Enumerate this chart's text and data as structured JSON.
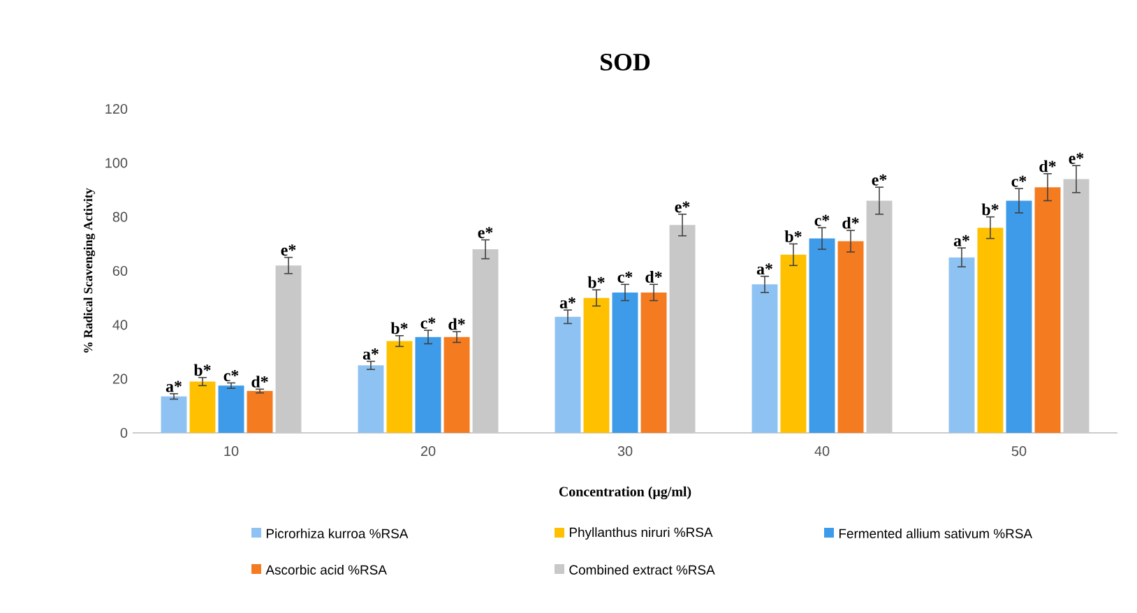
{
  "chart_data": {
    "type": "bar",
    "title": "SOD",
    "xlabel": "Concentration (µg/ml)",
    "ylabel": "% Radical Scavenging Activity",
    "categories": [
      "10",
      "20",
      "30",
      "40",
      "50"
    ],
    "series": [
      {
        "name": "Picrorhiza kurroa %RSA",
        "color": "#8ec2f2",
        "values": [
          13.5,
          25,
          43,
          55,
          65
        ],
        "errors": [
          1,
          1.5,
          2.5,
          3,
          3.5
        ],
        "value_labels": [
          "a*",
          "a*",
          "a*",
          "a*",
          "a*"
        ]
      },
      {
        "name": "Phyllanthus niruri %RSA",
        "color": "#ffc000",
        "values": [
          19,
          34,
          50,
          66,
          76
        ],
        "errors": [
          1.5,
          2,
          3,
          4,
          4
        ],
        "value_labels": [
          "b*",
          "b*",
          "b*",
          "b*",
          "b*"
        ]
      },
      {
        "name": "Fermented allium sativum %RSA",
        "color": "#3d9be9",
        "values": [
          17.5,
          35.5,
          52,
          72,
          86
        ],
        "errors": [
          1,
          2.5,
          3,
          4,
          4.5
        ],
        "value_labels": [
          "c*",
          "c*",
          "c*",
          "c*",
          "c*"
        ]
      },
      {
        "name": "Ascorbic acid %RSA",
        "color": "#f47b20",
        "values": [
          15.5,
          35.5,
          52,
          71,
          91
        ],
        "errors": [
          0.7,
          2,
          3,
          4,
          5
        ],
        "value_labels": [
          "d*",
          "d*",
          "d*",
          "d*",
          "d*"
        ]
      },
      {
        "name": "Combined extract %RSA",
        "color": "#c8c8c8",
        "values": [
          62,
          68,
          77,
          86,
          94
        ],
        "errors": [
          3,
          3.5,
          4,
          5,
          5
        ],
        "value_labels": [
          "e*",
          "e*",
          "e*",
          "e*",
          "e*"
        ]
      }
    ],
    "ylim": [
      0,
      120
    ],
    "yticks": [
      0,
      20,
      40,
      60,
      80,
      100,
      120
    ],
    "grid": false,
    "legend": "bottom"
  }
}
